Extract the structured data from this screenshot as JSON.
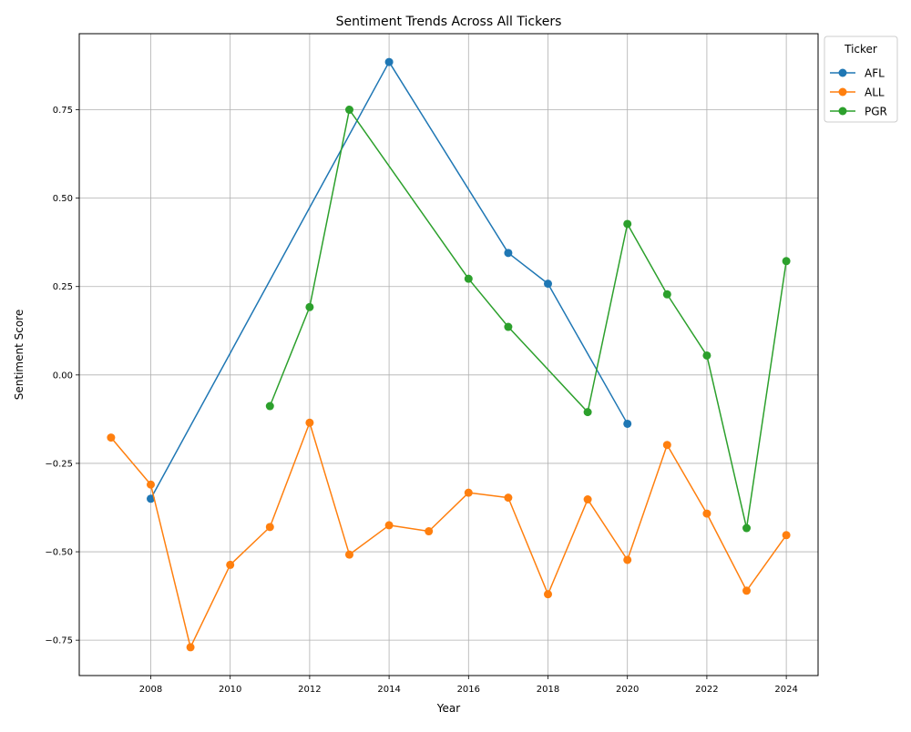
{
  "chart_data": {
    "type": "line",
    "title": "Sentiment Trends Across All Tickers",
    "xlabel": "Year",
    "ylabel": "Sentiment Score",
    "xlim": [
      2006.2,
      2024.8
    ],
    "ylim": [
      -0.85,
      0.965
    ],
    "xticks": [
      2008,
      2010,
      2012,
      2014,
      2016,
      2018,
      2020,
      2022,
      2024
    ],
    "xtick_labels": [
      "2008",
      "2010",
      "2012",
      "2014",
      "2016",
      "2018",
      "2020",
      "2022",
      "2024"
    ],
    "yticks": [
      -0.75,
      -0.5,
      -0.25,
      0.0,
      0.25,
      0.5,
      0.75
    ],
    "ytick_labels": [
      "−0.75",
      "−0.50",
      "−0.25",
      "0.00",
      "0.25",
      "0.50",
      "0.75"
    ],
    "grid": true,
    "legend": {
      "title": "Ticker",
      "placement": "outside top-right"
    },
    "series": [
      {
        "name": "AFL",
        "color": "#1f77b4",
        "x": [
          2008,
          2014,
          2017,
          2018,
          2020
        ],
        "y": [
          -0.35,
          0.885,
          0.345,
          0.258,
          -0.138
        ]
      },
      {
        "name": "ALL",
        "color": "#ff7f0e",
        "x": [
          2007,
          2008,
          2009,
          2010,
          2011,
          2012,
          2013,
          2014,
          2015,
          2016,
          2017,
          2018,
          2019,
          2020,
          2021,
          2022,
          2023,
          2024
        ],
        "y": [
          -0.177,
          -0.31,
          -0.77,
          -0.537,
          -0.43,
          -0.135,
          -0.508,
          -0.425,
          -0.442,
          -0.333,
          -0.347,
          -0.62,
          -0.352,
          -0.523,
          -0.198,
          -0.392,
          -0.61,
          -0.453
        ]
      },
      {
        "name": "PGR",
        "color": "#2ca02c",
        "x": [
          2011,
          2012,
          2013,
          2016,
          2017,
          2019,
          2020,
          2021,
          2022,
          2023,
          2024
        ],
        "y": [
          -0.088,
          0.192,
          0.75,
          0.272,
          0.136,
          -0.105,
          0.427,
          0.228,
          0.055,
          -0.433,
          0.322
        ]
      }
    ]
  }
}
